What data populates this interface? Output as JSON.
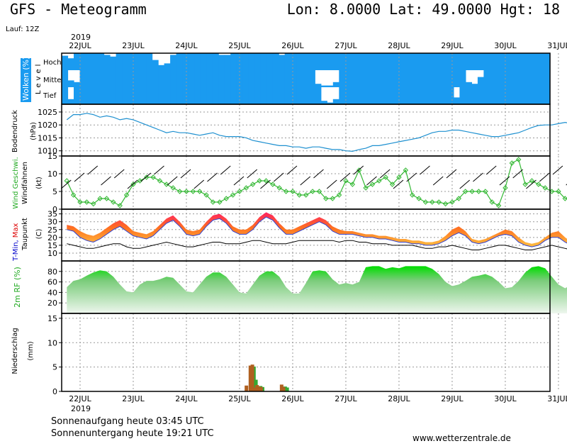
{
  "header": {
    "title": "GFS - Meteogramm",
    "location": "Lon: 8.0000  Lat: 49.0000  Hgt: 18",
    "run": "Lauf: 12Z",
    "year_top": "2019",
    "year_bottom": "2019"
  },
  "footer": {
    "sunrise": "Sonnenaufgang heute 03:45 UTC",
    "sunset": "Sonnenuntergang heute 19:21 UTC",
    "website": "www.wetterzentrale.de"
  },
  "colors": {
    "cloud": "#1a9bf0",
    "pressure_line": "#1e90d0",
    "wind_line": "#33b833",
    "temp_min_label": "#0000cc",
    "temp_max_label": "#dd0000",
    "humidity": "#22cc22",
    "precip_a": "#b06020",
    "precip_b": "#33aa33",
    "grid": "#999999"
  },
  "chart_data": {
    "type": "meteogram",
    "x_axis": {
      "ticks": [
        "22JUL",
        "23JUL",
        "24JUL",
        "25JUL",
        "26JUL",
        "27JUL",
        "28JUL",
        "29JUL",
        "30JUL",
        "31JUL"
      ],
      "start": "2019-07-21 18:00",
      "step_hours": 3
    },
    "panels": [
      {
        "id": "clouds",
        "ylabel": "Wolken (%)",
        "ylabel2": "Level",
        "levels": [
          "Hoch",
          "Mittel",
          "Tief"
        ],
        "series": [
          {
            "name": "Hoch",
            "values": [
              85,
              70,
              100,
              100,
              100,
              100,
              100,
              90,
              80,
              100,
              100,
              100,
              100,
              100,
              100,
              60,
              30,
              40,
              90,
              100,
              100,
              100,
              100,
              100,
              100,
              100,
              90,
              90,
              100,
              100,
              100,
              100,
              100,
              100,
              100,
              100,
              90,
              100,
              100,
              100,
              100,
              100,
              100,
              100,
              100,
              100,
              100,
              100,
              100,
              100,
              100,
              100,
              100,
              100,
              100,
              100,
              100,
              100,
              100,
              100,
              100,
              100,
              100,
              100,
              100,
              100,
              100,
              100,
              100,
              100,
              100,
              100,
              100,
              100,
              100,
              100,
              100,
              100,
              100,
              100,
              100
            ]
          },
          {
            "name": "Mittel",
            "values": [
              100,
              40,
              30,
              100,
              100,
              100,
              100,
              100,
              100,
              100,
              100,
              100,
              100,
              100,
              100,
              100,
              100,
              100,
              100,
              100,
              100,
              100,
              100,
              100,
              100,
              100,
              100,
              100,
              100,
              100,
              100,
              100,
              100,
              100,
              100,
              100,
              100,
              100,
              100,
              100,
              100,
              100,
              20,
              10,
              10,
              30,
              100,
              100,
              100,
              100,
              100,
              100,
              100,
              100,
              100,
              100,
              100,
              100,
              100,
              100,
              100,
              100,
              100,
              100,
              100,
              100,
              100,
              30,
              20,
              60,
              100,
              100,
              100,
              100,
              100,
              100,
              100,
              100,
              100,
              100,
              100
            ]
          },
          {
            "name": "Tief",
            "values": [
              100,
              30,
              100,
              100,
              100,
              100,
              100,
              100,
              100,
              100,
              100,
              100,
              100,
              100,
              100,
              100,
              100,
              100,
              100,
              100,
              100,
              100,
              100,
              100,
              100,
              100,
              100,
              100,
              100,
              100,
              100,
              100,
              100,
              100,
              100,
              100,
              100,
              100,
              100,
              100,
              100,
              100,
              100,
              20,
              10,
              30,
              100,
              100,
              100,
              100,
              100,
              100,
              100,
              100,
              100,
              100,
              100,
              100,
              100,
              100,
              100,
              100,
              100,
              100,
              100,
              40,
              100,
              100,
              100,
              100,
              100,
              100,
              100,
              100,
              100,
              100,
              100,
              100,
              100,
              100,
              100
            ]
          }
        ]
      },
      {
        "id": "pressure",
        "ylabel": "Bodendruck",
        "unit": "(hPa)",
        "ylim": [
          1008,
          1028
        ],
        "ticks": [
          1010,
          1015,
          1020,
          1025
        ],
        "values": [
          1022,
          1024,
          1024,
          1024.5,
          1024,
          1023,
          1023.5,
          1023,
          1022,
          1022.5,
          1022,
          1021,
          1020,
          1019,
          1018,
          1017,
          1017.5,
          1017,
          1017,
          1016.5,
          1016,
          1016.5,
          1017,
          1016,
          1015.5,
          1015.5,
          1015.5,
          1015,
          1014,
          1013.5,
          1013,
          1012.5,
          1012,
          1012,
          1011.5,
          1011.5,
          1011,
          1011.5,
          1011.5,
          1011,
          1010.5,
          1010.5,
          1010,
          1009.8,
          1010.5,
          1011,
          1012,
          1012,
          1012.5,
          1013,
          1013.5,
          1014,
          1014.5,
          1015,
          1016,
          1017,
          1017.5,
          1017.5,
          1018,
          1018,
          1017.5,
          1017,
          1016.5,
          1016,
          1015.5,
          1015.5,
          1016,
          1016.5,
          1017,
          1018,
          1019,
          1019.8,
          1020,
          1020,
          1020.5,
          1021,
          1020.5,
          1020,
          1020.5,
          1021.5,
          1021,
          1020.5,
          1020.5,
          1020,
          1019.8,
          1019.5,
          1018.5
        ]
      },
      {
        "id": "wind",
        "ylabel": "Wind Geschwi.",
        "ylabel2": "Windfahnen",
        "unit": "(kt)",
        "ylim": [
          0,
          15
        ],
        "ticks": [
          0,
          5,
          10,
          15
        ],
        "values": [
          8,
          4,
          2,
          2,
          1.5,
          3,
          3,
          2,
          1,
          4,
          7,
          8,
          9,
          9,
          8,
          7,
          6,
          5,
          5,
          5,
          5,
          4,
          2,
          2,
          3,
          4,
          5,
          6,
          7,
          8,
          8,
          7,
          6,
          5,
          5,
          4,
          4,
          5,
          5,
          3,
          3,
          4,
          8,
          7,
          11,
          6,
          7,
          8,
          9,
          7,
          9,
          11,
          4,
          3,
          2,
          2,
          2,
          1.5,
          2,
          3,
          5,
          5,
          5,
          5,
          2,
          1,
          6,
          13,
          14,
          7,
          8,
          7,
          6,
          5,
          5,
          3,
          3,
          1,
          5,
          6,
          7,
          8,
          9,
          10,
          11,
          10,
          9
        ]
      },
      {
        "id": "temperature",
        "ylabel_min": "T-Min,",
        "ylabel_max": "Max",
        "ylabel2": "Taupunkt",
        "unit": "(C)",
        "ylim": [
          5,
          38
        ],
        "ticks": [
          10,
          15,
          20,
          25,
          30,
          35
        ],
        "tmin": [
          25,
          24,
          20,
          18,
          17,
          19,
          22,
          25,
          27,
          24,
          21,
          20,
          19,
          21,
          25,
          29,
          31,
          27,
          22,
          21,
          22,
          27,
          31,
          32,
          29,
          24,
          22,
          22,
          25,
          30,
          33,
          31,
          26,
          22,
          22,
          24,
          26,
          28,
          30,
          28,
          24,
          22,
          22,
          22,
          21,
          20,
          20,
          19,
          19,
          18,
          17,
          17,
          16,
          16,
          15,
          15,
          16,
          18,
          21,
          23,
          21,
          17,
          16,
          17,
          19,
          21,
          22,
          21,
          17,
          15,
          14,
          15,
          18,
          20,
          20,
          17,
          15,
          16,
          18,
          21,
          21,
          18,
          16,
          17,
          19,
          20,
          21
        ],
        "tmax": [
          28,
          27,
          24,
          22,
          21,
          23,
          26,
          29,
          31,
          28,
          24,
          23,
          22,
          24,
          28,
          32,
          34,
          30,
          25,
          24,
          25,
          30,
          34,
          35,
          32,
          27,
          25,
          25,
          28,
          33,
          36,
          34,
          29,
          25,
          25,
          27,
          29,
          31,
          33,
          31,
          27,
          25,
          24,
          24,
          23,
          22,
          22,
          21,
          21,
          20,
          19,
          19,
          18,
          18,
          17,
          17,
          18,
          21,
          25,
          27,
          24,
          19,
          18,
          19,
          21,
          23,
          25,
          24,
          20,
          17,
          16,
          17,
          20,
          23,
          24,
          20,
          17,
          18,
          21,
          24,
          24,
          21,
          18,
          19,
          21,
          23,
          24
        ],
        "dewpoint": [
          16,
          15,
          14,
          13,
          13,
          14,
          15,
          16,
          16,
          14,
          13,
          13,
          14,
          15,
          16,
          17,
          16,
          15,
          14,
          14,
          15,
          16,
          17,
          17,
          16,
          16,
          16,
          17,
          18,
          18,
          17,
          16,
          16,
          16,
          17,
          18,
          18,
          18,
          18,
          18,
          18,
          17,
          18,
          18,
          17,
          17,
          16,
          16,
          16,
          15,
          15,
          15,
          15,
          14,
          13,
          13,
          14,
          14,
          15,
          14,
          13,
          12,
          12,
          13,
          14,
          15,
          15,
          14,
          13,
          12,
          12,
          13,
          14,
          15,
          14,
          13,
          12,
          13,
          14,
          14,
          14,
          13,
          13,
          13,
          14,
          14,
          14
        ]
      },
      {
        "id": "humidity",
        "ylabel": "2m RF (%)",
        "ylim": [
          0,
          100
        ],
        "ticks": [
          20,
          40,
          60,
          80
        ],
        "values": [
          50,
          62,
          65,
          72,
          78,
          82,
          80,
          70,
          55,
          42,
          40,
          55,
          62,
          62,
          65,
          70,
          68,
          55,
          42,
          40,
          55,
          70,
          78,
          78,
          70,
          55,
          40,
          38,
          55,
          72,
          80,
          80,
          70,
          50,
          38,
          38,
          58,
          80,
          82,
          80,
          65,
          55,
          58,
          55,
          60,
          88,
          90,
          90,
          85,
          88,
          86,
          90,
          90,
          90,
          90,
          85,
          75,
          60,
          52,
          55,
          62,
          70,
          72,
          75,
          70,
          60,
          48,
          50,
          62,
          78,
          88,
          90,
          86,
          70,
          55,
          48,
          55,
          75,
          88,
          90,
          88,
          75,
          62,
          60,
          72,
          80,
          52
        ]
      },
      {
        "id": "precipitation",
        "ylabel": "Niederschlag",
        "unit": "(mm)",
        "ylim": [
          0,
          16
        ],
        "ticks": [
          0,
          5,
          10,
          15
        ],
        "bars": [
          {
            "x": 27.3,
            "a": 1.2,
            "b": 0
          },
          {
            "x": 27.9,
            "a": 5.3,
            "b": 5.1
          },
          {
            "x": 28.2,
            "a": 5.5,
            "b": 2.4
          },
          {
            "x": 28.6,
            "a": 0.8,
            "b": 0
          },
          {
            "x": 28.9,
            "a": 1.3,
            "b": 1.1
          },
          {
            "x": 29.2,
            "a": 1.0,
            "b": 0.9
          },
          {
            "x": 29.5,
            "a": 0.9,
            "b": 0
          },
          {
            "x": 32.6,
            "a": 1.4,
            "b": 1.0
          },
          {
            "x": 32.9,
            "a": 0.9,
            "b": 0.8
          }
        ]
      }
    ]
  }
}
